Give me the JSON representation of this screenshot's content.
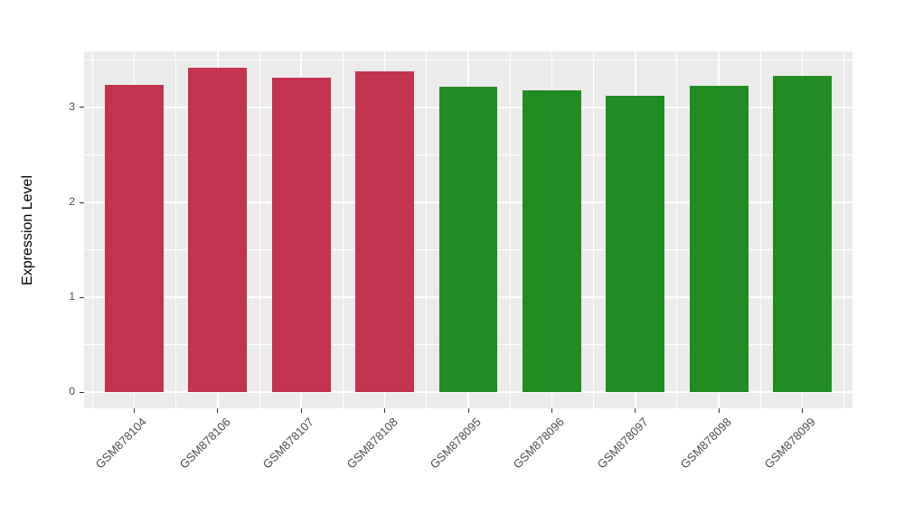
{
  "chart_data": {
    "type": "bar",
    "title": "",
    "xlabel": "",
    "ylabel": "Expression Level",
    "categories": [
      "GSM878104",
      "GSM878106",
      "GSM878107",
      "GSM878108",
      "GSM878095",
      "GSM878096",
      "GSM878097",
      "GSM878098",
      "GSM878099"
    ],
    "values": [
      3.24,
      3.42,
      3.31,
      3.38,
      3.22,
      3.18,
      3.12,
      3.23,
      3.33
    ],
    "bar_colors": [
      "#C2334D",
      "#C2334D",
      "#C2334D",
      "#C2334D",
      "#228B22",
      "#228B22",
      "#228B22",
      "#228B22",
      "#228B22"
    ],
    "group_colors": {
      "red_group": "#C2334D",
      "green_group": "#228B22"
    },
    "ytick_values": [
      0,
      1,
      2,
      3
    ],
    "ytick_minor_values": [
      0.5,
      1.5,
      2.5,
      3.5
    ],
    "ylim": [
      -0.17,
      3.59
    ],
    "x_padding": 0.6,
    "bar_width": 0.7,
    "xtick_label_angle": 45,
    "grid": true,
    "legend_position": "none",
    "panel_bg": "#EBEBEB",
    "grid_color": "#FFFFFF",
    "axis_text_color": "#4D4D4D",
    "tick_mark_color": "#333333",
    "figure_bg": "#FFFFFF"
  }
}
